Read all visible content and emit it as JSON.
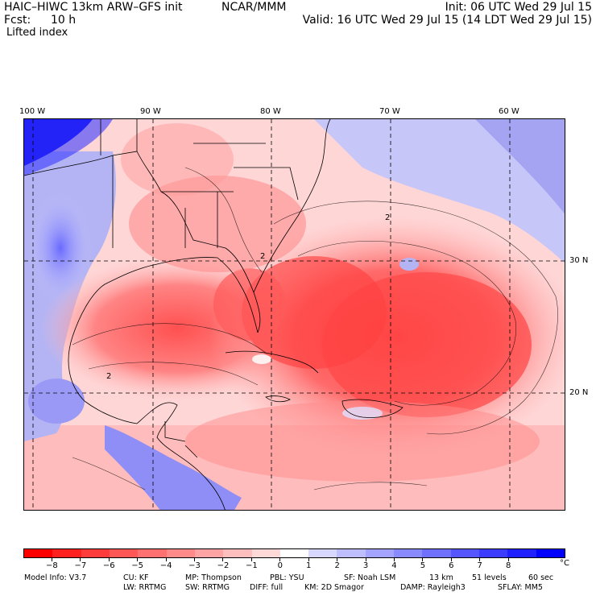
{
  "header": {
    "model_title": "HAIC–HIWC 13km ARW–GFS init",
    "org": "NCAR/MMM",
    "init": "Init: 06 UTC Wed 29 Jul 15",
    "fcst_label": "Fcst:",
    "fcst_value": "10 h",
    "valid": "Valid: 16 UTC Wed 29 Jul 15 (14 LDT Wed 29 Jul 15)",
    "field": "Lifted index"
  },
  "map": {
    "lon_labels": [
      "100 W",
      "90 W",
      "80 W",
      "70 W",
      "60 W"
    ],
    "lat_labels": [
      "30 N",
      "20 N"
    ],
    "contour_labels": [
      "2",
      "2",
      "2"
    ]
  },
  "colorbar": {
    "unit": "°C",
    "ticks": [
      "−8",
      "−7",
      "−6",
      "−5",
      "−4",
      "−3",
      "−2",
      "−1",
      "0",
      "1",
      "2",
      "3",
      "4",
      "5",
      "6",
      "7",
      "8"
    ],
    "colors": [
      "#ff0000",
      "#ff2020",
      "#ff3c3c",
      "#ff5656",
      "#ff7070",
      "#ff8a8a",
      "#ffa4a4",
      "#ffbebe",
      "#ffd8d8",
      "#ffffff",
      "#d8d8ff",
      "#bebeff",
      "#a4a4ff",
      "#8a8aff",
      "#7070ff",
      "#5656ff",
      "#3c3cff",
      "#2020ff",
      "#0000ff"
    ]
  },
  "footer": {
    "line1": [
      "Model Info: V3.7",
      "CU: KF",
      "MP: Thompson",
      "PBL: YSU",
      "SF: Noah LSM",
      "13 km",
      "51 levels",
      "60 sec"
    ],
    "line2": [
      "LW: RRTMG",
      "SW: RRTMG",
      "DIFF: full",
      "KM: 2D Smagor",
      "DAMP: Rayleigh3",
      "SFLAY: MM5"
    ]
  }
}
